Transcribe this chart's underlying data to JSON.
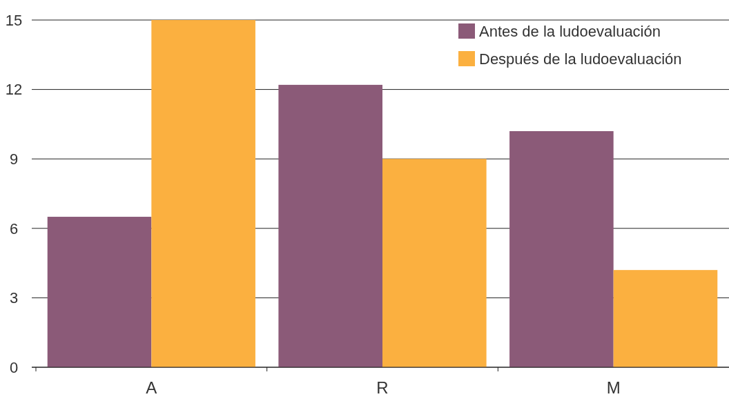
{
  "chart_data": {
    "type": "bar",
    "categories": [
      "A",
      "R",
      "M"
    ],
    "series": [
      {
        "name": "Antes de la ludoevaluación",
        "color": "#8b5a78",
        "values": [
          6.5,
          12.2,
          10.2
        ]
      },
      {
        "name": "Después de la ludoevaluación",
        "color": "#fbb040",
        "values": [
          15,
          9,
          4.2
        ]
      }
    ],
    "ylim": [
      0,
      15
    ],
    "yticks": [
      0,
      3,
      6,
      9,
      12,
      15
    ],
    "grid": "y",
    "legend": "top right"
  }
}
